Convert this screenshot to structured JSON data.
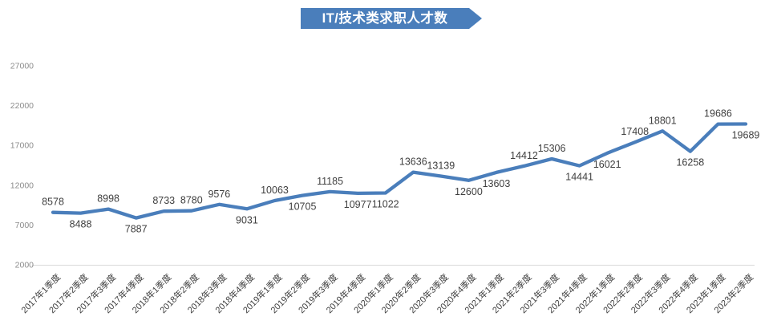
{
  "chart_data": {
    "type": "line",
    "title": "IT/技术类求职人才数",
    "categories": [
      "2017年1季度",
      "2017年2季度",
      "2017年3季度",
      "2017年4季度",
      "2018年1季度",
      "2018年2季度",
      "2018年3季度",
      "2018年4季度",
      "2019年1季度",
      "2019年2季度",
      "2019年3季度",
      "2019年4季度",
      "2020年1季度",
      "2020年2季度",
      "2020年3季度",
      "2020年4季度",
      "2021年1季度",
      "2021年2季度",
      "2021年3季度",
      "2021年4季度",
      "2022年1季度",
      "2022年2季度",
      "2022年3季度",
      "2022年4季度",
      "2023年1季度",
      "2023年2季度"
    ],
    "values": [
      8578,
      8488,
      8998,
      7887,
      8733,
      8780,
      9576,
      9031,
      10063,
      10705,
      11185,
      10977,
      11022,
      13636,
      13139,
      12600,
      13603,
      14412,
      15306,
      14441,
      16021,
      17408,
      18801,
      16258,
      19686,
      19689
    ],
    "data_label_positions": [
      "above",
      "below",
      "above",
      "below",
      "above",
      "above",
      "above",
      "below",
      "above",
      "below",
      "above",
      "below",
      "below",
      "above",
      "above",
      "below",
      "below",
      "above",
      "above",
      "below",
      "below",
      "above",
      "above",
      "below",
      "above",
      "below"
    ],
    "xlabel": "",
    "ylabel": "",
    "ylim": [
      2000,
      27000
    ],
    "yticks": [
      2000,
      7000,
      12000,
      17000,
      22000,
      27000
    ],
    "grid": false,
    "legend": "none",
    "colors": {
      "line": "#4A7EBB",
      "banner_bg": "#4A7EBB",
      "banner_text": "#FFFFFF",
      "axis_line": "#D9D9D9",
      "y_tick_label": "#8C8C8C",
      "x_tick_label": "#404040",
      "data_label": "#3F3F3F"
    }
  }
}
